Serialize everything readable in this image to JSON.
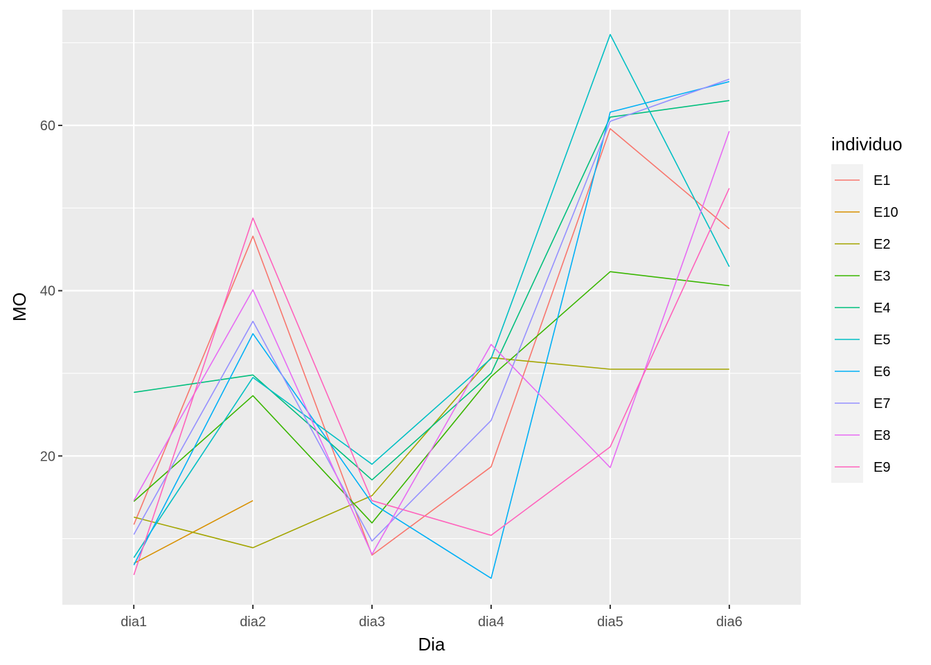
{
  "chart_data": {
    "type": "line",
    "xlabel": "Dia",
    "ylabel": "MO",
    "categories": [
      "dia1",
      "dia2",
      "dia3",
      "dia4",
      "dia5",
      "dia6"
    ],
    "ylim": [
      2,
      74
    ],
    "yticks": [
      20,
      40,
      60
    ],
    "grid": true,
    "legend": {
      "title": "individuo",
      "position": "right"
    },
    "series": [
      {
        "name": "E1",
        "color": "#F8766D",
        "values": [
          11.7,
          46.6,
          8.0,
          18.7,
          59.6,
          47.5
        ]
      },
      {
        "name": "E10",
        "color": "#D89000",
        "values": [
          7.0,
          14.6,
          null,
          null,
          null,
          null
        ]
      },
      {
        "name": "E2",
        "color": "#A3A500",
        "values": [
          12.6,
          8.9,
          15.2,
          31.9,
          30.5,
          30.5
        ]
      },
      {
        "name": "E3",
        "color": "#39B600",
        "values": [
          14.5,
          27.3,
          11.9,
          29.6,
          42.3,
          40.6
        ]
      },
      {
        "name": "E4",
        "color": "#00BF7D",
        "values": [
          27.7,
          29.8,
          17.1,
          30.0,
          61.0,
          63.0
        ]
      },
      {
        "name": "E5",
        "color": "#00BFC4",
        "values": [
          7.7,
          29.5,
          19.0,
          31.8,
          71.0,
          42.9
        ]
      },
      {
        "name": "E6",
        "color": "#00B0F6",
        "values": [
          6.8,
          34.8,
          14.3,
          5.2,
          61.6,
          65.3
        ]
      },
      {
        "name": "E7",
        "color": "#9590FF",
        "values": [
          10.5,
          36.3,
          9.7,
          24.3,
          60.5,
          65.6
        ]
      },
      {
        "name": "E8",
        "color": "#E76BF3",
        "values": [
          14.6,
          40.1,
          8.1,
          33.5,
          18.6,
          59.3
        ]
      },
      {
        "name": "E9",
        "color": "#FF62BC",
        "values": [
          5.6,
          48.8,
          14.6,
          10.4,
          21.1,
          52.4
        ]
      }
    ]
  }
}
